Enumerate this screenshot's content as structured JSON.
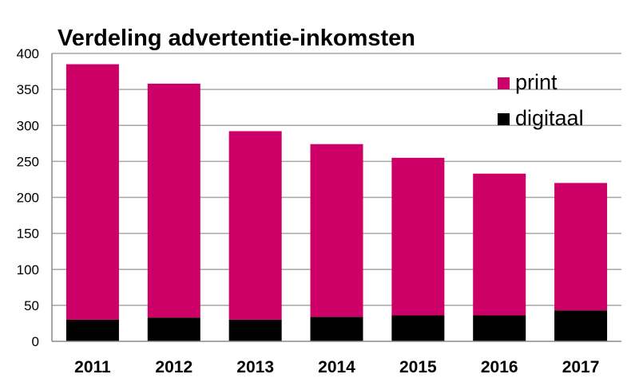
{
  "chart_data": {
    "type": "bar",
    "stacked": true,
    "title": "Verdeling advertentie-inkomsten",
    "xlabel": "",
    "ylabel": "",
    "categories": [
      "2011",
      "2012",
      "2013",
      "2014",
      "2015",
      "2016",
      "2017"
    ],
    "series": [
      {
        "name": "digitaal",
        "color": "#000000",
        "values": [
          30,
          33,
          30,
          34,
          36,
          36,
          43
        ]
      },
      {
        "name": "print",
        "color": "#cc0066",
        "values": [
          355,
          325,
          262,
          240,
          219,
          197,
          177
        ]
      }
    ],
    "ylim": [
      0,
      400
    ],
    "yticks": [
      0,
      50,
      100,
      150,
      200,
      250,
      300,
      350,
      400
    ],
    "grid": true,
    "legend": {
      "position": "top-right",
      "order": [
        "print",
        "digitaal"
      ]
    }
  }
}
